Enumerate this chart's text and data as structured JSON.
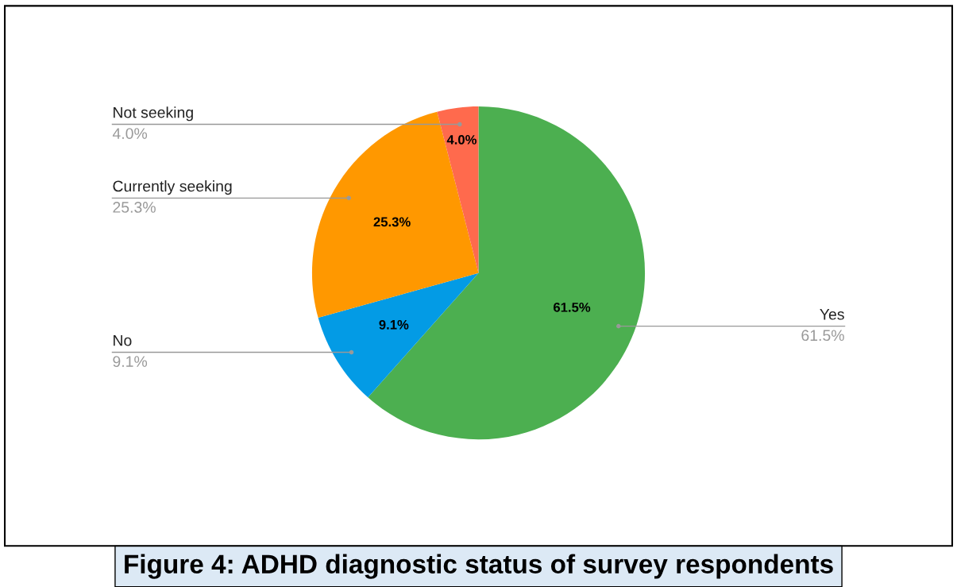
{
  "chart_data": {
    "type": "pie",
    "title": "Figure 4: ADHD diagnostic status of survey respondents",
    "categories": [
      "Yes",
      "No",
      "Currently seeking",
      "Not seeking"
    ],
    "values": [
      61.5,
      9.1,
      25.3,
      4.0
    ],
    "colors": [
      "#4caf50",
      "#039be5",
      "#ff9800",
      "#ff6a4d"
    ],
    "value_labels": [
      "61.5%",
      "9.1%",
      "25.3%",
      "4.0%"
    ],
    "data_labels": true,
    "legend": false
  }
}
